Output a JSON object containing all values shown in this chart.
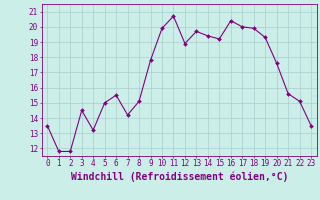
{
  "x": [
    0,
    1,
    2,
    3,
    4,
    5,
    6,
    7,
    8,
    9,
    10,
    11,
    12,
    13,
    14,
    15,
    16,
    17,
    18,
    19,
    20,
    21,
    22,
    23
  ],
  "y": [
    13.5,
    11.8,
    11.8,
    14.5,
    13.2,
    15.0,
    15.5,
    14.2,
    15.1,
    17.8,
    19.9,
    20.7,
    18.9,
    19.7,
    19.4,
    19.2,
    20.4,
    20.0,
    19.9,
    19.3,
    17.6,
    15.6,
    15.1,
    13.5
  ],
  "line_color": "#800080",
  "marker": "D",
  "marker_size": 2.0,
  "bg_color": "#cceee8",
  "grid_color": "#aacccc",
  "axis_color": "#800080",
  "xlabel": "Windchill (Refroidissement éolien,°C)",
  "ylim": [
    11.5,
    21.5
  ],
  "xlim": [
    -0.5,
    23.5
  ],
  "yticks": [
    12,
    13,
    14,
    15,
    16,
    17,
    18,
    19,
    20,
    21
  ],
  "xticks": [
    0,
    1,
    2,
    3,
    4,
    5,
    6,
    7,
    8,
    9,
    10,
    11,
    12,
    13,
    14,
    15,
    16,
    17,
    18,
    19,
    20,
    21,
    22,
    23
  ],
  "tick_label_fontsize": 5.5,
  "xlabel_fontsize": 7.0
}
